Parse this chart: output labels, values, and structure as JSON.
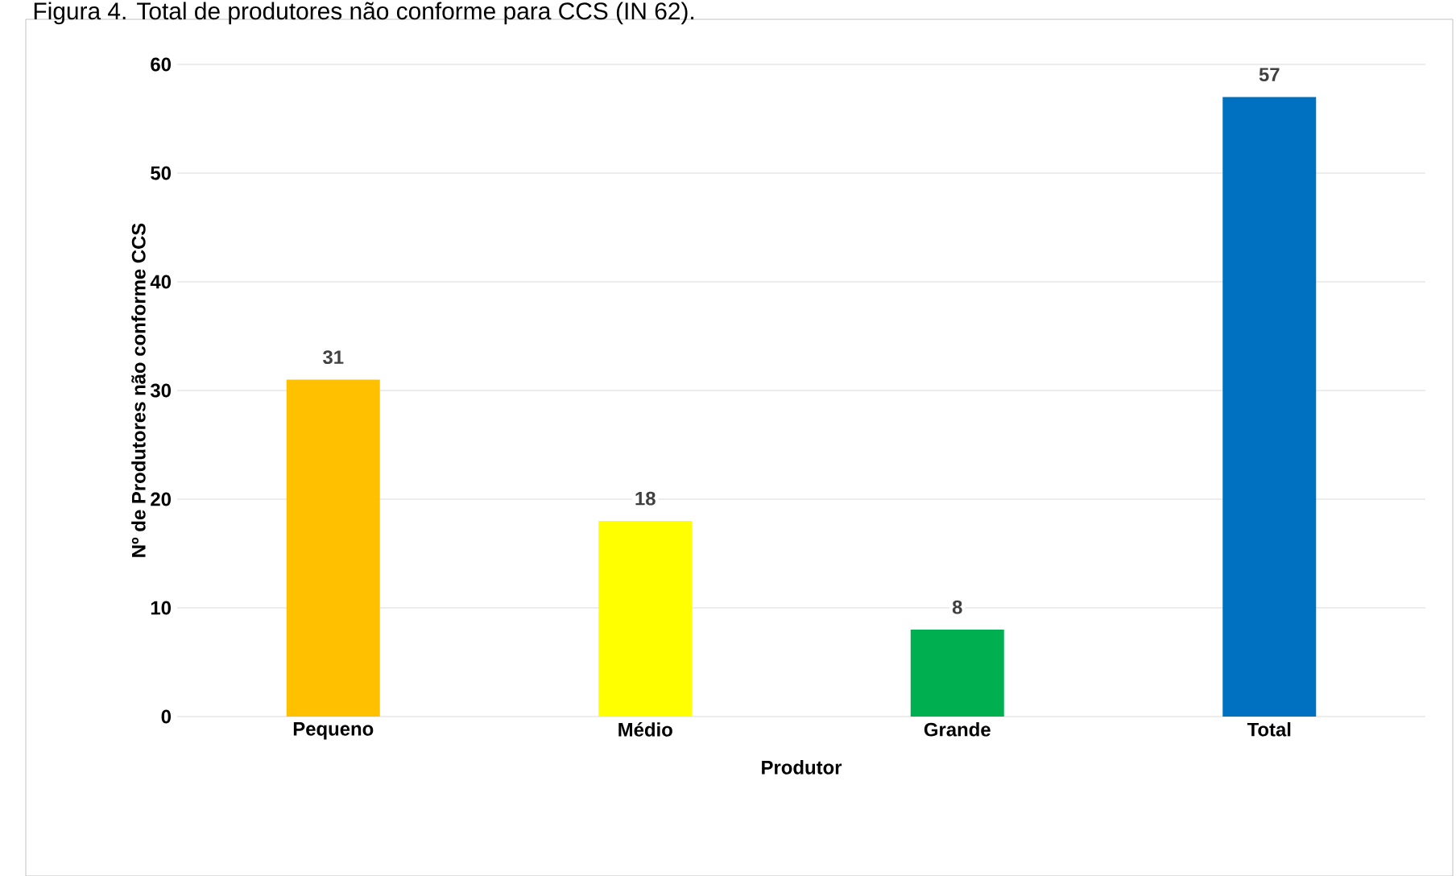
{
  "chart_data": {
    "type": "bar",
    "title": "Figura 4. Total de produtores não conforme para CCS (IN 62).",
    "xlabel": "Produtor",
    "ylabel": "Nº de Produtores não conforme CCS",
    "categories": [
      "Pequeno",
      "Médio",
      "Grande",
      "Total"
    ],
    "values": [
      31,
      18,
      8,
      57
    ],
    "colors": [
      "#ffc000",
      "#ffff00",
      "#00b050",
      "#0070c0"
    ],
    "ylim": [
      0,
      60
    ],
    "yticks": [
      0,
      10,
      20,
      30,
      40,
      50,
      60
    ],
    "grid": "y",
    "data_labels": true
  }
}
